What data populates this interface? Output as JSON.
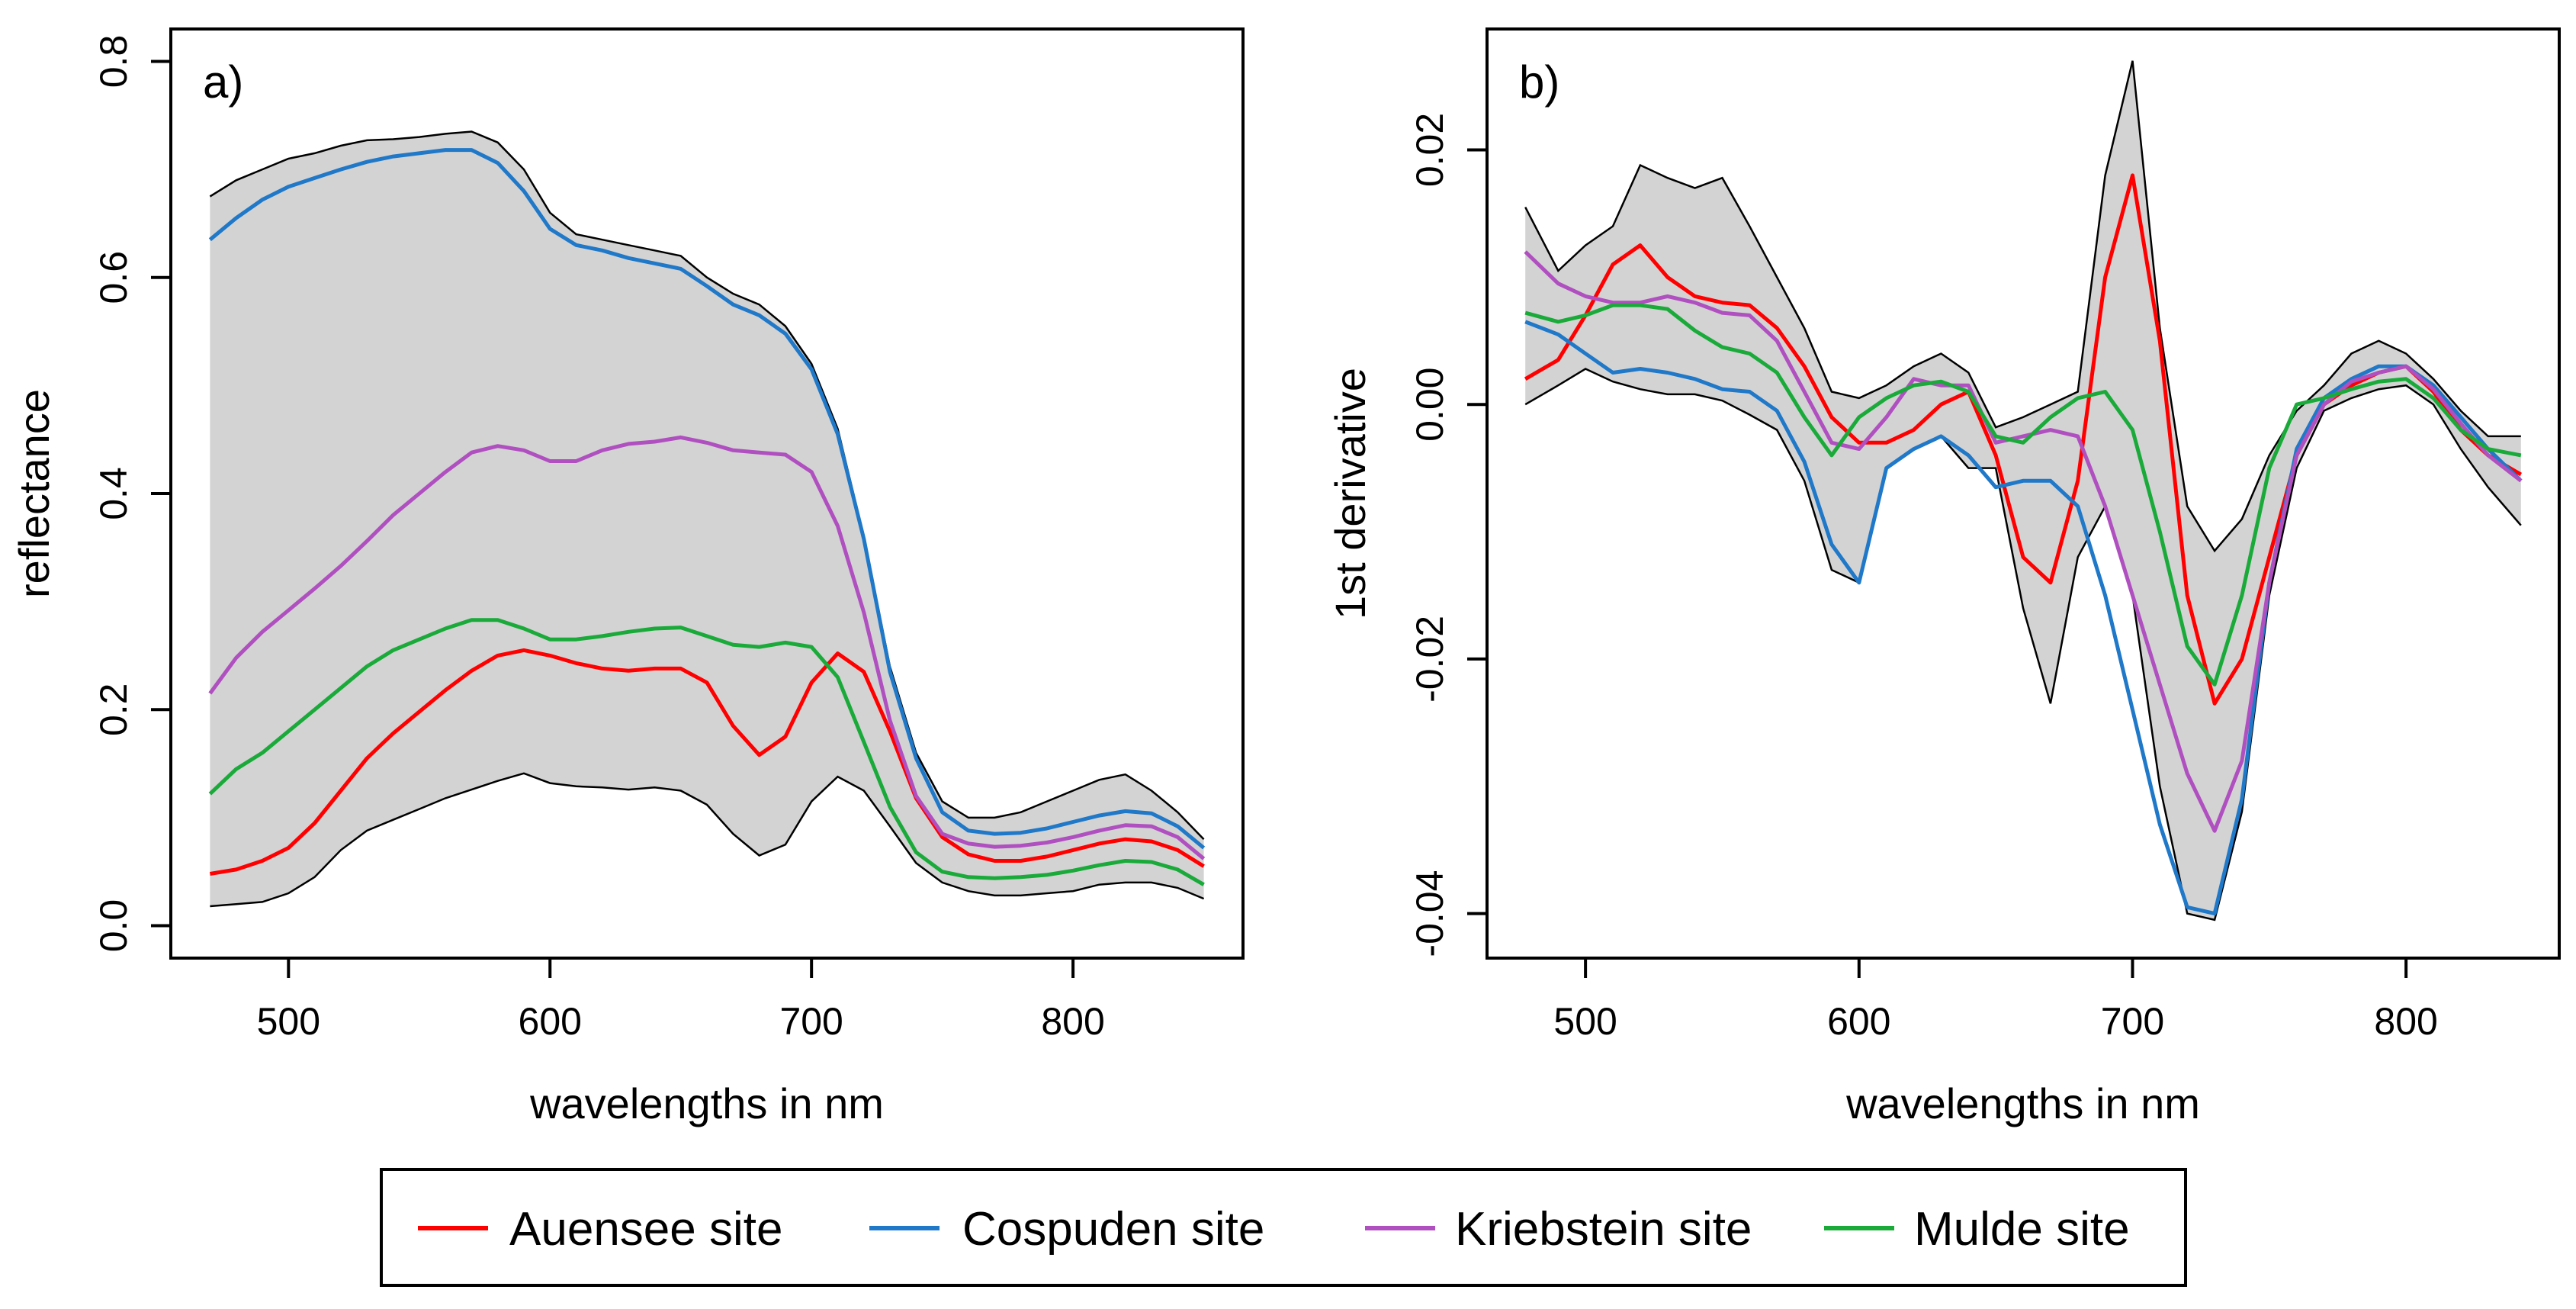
{
  "chart_data": [
    {
      "type": "line",
      "panel_label": "a)",
      "xlabel": "wavelengths in nm",
      "ylabel": "reflectance",
      "xlim": [
        455,
        865
      ],
      "ylim": [
        -0.03,
        0.83
      ],
      "xticks": [
        500,
        600,
        700,
        800
      ],
      "xtick_labels": [
        "500",
        "600",
        "700",
        "800"
      ],
      "yticks": [
        0.0,
        0.2,
        0.4,
        0.6,
        0.8
      ],
      "ytick_labels": [
        "0.0",
        "0.2",
        "0.4",
        "0.6",
        "0.8"
      ],
      "band": {
        "name": "min-max range",
        "color": "#d3d3d3",
        "x": [
          470,
          480,
          490,
          500,
          510,
          520,
          530,
          540,
          550,
          560,
          570,
          580,
          590,
          600,
          610,
          620,
          630,
          640,
          650,
          660,
          670,
          680,
          690,
          700,
          710,
          720,
          730,
          740,
          750,
          760,
          770,
          780,
          790,
          800,
          810,
          820,
          830,
          840,
          850
        ],
        "upper": [
          0.675,
          0.69,
          0.7,
          0.71,
          0.715,
          0.722,
          0.727,
          0.728,
          0.73,
          0.733,
          0.735,
          0.725,
          0.7,
          0.66,
          0.64,
          0.635,
          0.63,
          0.625,
          0.62,
          0.6,
          0.585,
          0.575,
          0.555,
          0.52,
          0.46,
          0.36,
          0.24,
          0.16,
          0.115,
          0.1,
          0.1,
          0.105,
          0.115,
          0.125,
          0.135,
          0.14,
          0.125,
          0.105,
          0.08
        ],
        "lower": [
          0.018,
          0.02,
          0.022,
          0.03,
          0.045,
          0.07,
          0.088,
          0.098,
          0.108,
          0.118,
          0.126,
          0.134,
          0.141,
          0.132,
          0.129,
          0.128,
          0.126,
          0.128,
          0.125,
          0.112,
          0.085,
          0.065,
          0.075,
          0.115,
          0.138,
          0.125,
          0.092,
          0.058,
          0.04,
          0.032,
          0.028,
          0.028,
          0.03,
          0.032,
          0.038,
          0.04,
          0.04,
          0.035,
          0.025
        ]
      },
      "series": [
        {
          "name": "Auensee site",
          "color": "#ff0000",
          "x": [
            470,
            480,
            490,
            500,
            510,
            520,
            530,
            540,
            550,
            560,
            570,
            580,
            590,
            600,
            610,
            620,
            630,
            640,
            650,
            660,
            670,
            680,
            690,
            700,
            710,
            720,
            730,
            740,
            750,
            760,
            770,
            780,
            790,
            800,
            810,
            820,
            830,
            840,
            850
          ],
          "y": [
            0.048,
            0.052,
            0.06,
            0.072,
            0.095,
            0.125,
            0.155,
            0.178,
            0.198,
            0.218,
            0.236,
            0.25,
            0.255,
            0.25,
            0.243,
            0.238,
            0.236,
            0.238,
            0.238,
            0.225,
            0.185,
            0.158,
            0.175,
            0.225,
            0.252,
            0.235,
            0.18,
            0.118,
            0.082,
            0.066,
            0.06,
            0.06,
            0.064,
            0.07,
            0.076,
            0.08,
            0.078,
            0.07,
            0.055
          ]
        },
        {
          "name": "Cospuden site",
          "color": "#1f78c8",
          "x": [
            470,
            480,
            490,
            500,
            510,
            520,
            530,
            540,
            550,
            560,
            570,
            580,
            590,
            600,
            610,
            620,
            630,
            640,
            650,
            660,
            670,
            680,
            690,
            700,
            710,
            720,
            730,
            740,
            750,
            760,
            770,
            780,
            790,
            800,
            810,
            820,
            830,
            840,
            850
          ],
          "y": [
            0.635,
            0.655,
            0.672,
            0.684,
            0.692,
            0.7,
            0.707,
            0.712,
            0.715,
            0.718,
            0.718,
            0.706,
            0.68,
            0.645,
            0.63,
            0.625,
            0.618,
            0.613,
            0.608,
            0.592,
            0.575,
            0.565,
            0.548,
            0.515,
            0.455,
            0.358,
            0.235,
            0.155,
            0.105,
            0.088,
            0.085,
            0.086,
            0.09,
            0.096,
            0.102,
            0.106,
            0.104,
            0.092,
            0.072
          ]
        },
        {
          "name": "Kriebstein site",
          "color": "#b04fc0",
          "x": [
            470,
            480,
            490,
            500,
            510,
            520,
            530,
            540,
            550,
            560,
            570,
            580,
            590,
            600,
            610,
            620,
            630,
            640,
            650,
            660,
            670,
            680,
            690,
            700,
            710,
            720,
            730,
            740,
            750,
            760,
            770,
            780,
            790,
            800,
            810,
            820,
            830,
            840,
            850
          ],
          "y": [
            0.215,
            0.248,
            0.272,
            0.292,
            0.312,
            0.333,
            0.356,
            0.38,
            0.4,
            0.42,
            0.438,
            0.444,
            0.44,
            0.43,
            0.43,
            0.44,
            0.446,
            0.448,
            0.452,
            0.447,
            0.44,
            0.438,
            0.436,
            0.42,
            0.37,
            0.29,
            0.19,
            0.12,
            0.085,
            0.076,
            0.073,
            0.074,
            0.077,
            0.082,
            0.088,
            0.093,
            0.092,
            0.082,
            0.062
          ]
        },
        {
          "name": "Mulde site",
          "color": "#1aaa3a",
          "x": [
            470,
            480,
            490,
            500,
            510,
            520,
            530,
            540,
            550,
            560,
            570,
            580,
            590,
            600,
            610,
            620,
            630,
            640,
            650,
            660,
            670,
            680,
            690,
            700,
            710,
            720,
            730,
            740,
            750,
            760,
            770,
            780,
            790,
            800,
            810,
            820,
            830,
            840,
            850
          ],
          "y": [
            0.122,
            0.145,
            0.16,
            0.18,
            0.2,
            0.22,
            0.24,
            0.255,
            0.265,
            0.275,
            0.283,
            0.283,
            0.275,
            0.265,
            0.265,
            0.268,
            0.272,
            0.275,
            0.276,
            0.268,
            0.26,
            0.258,
            0.262,
            0.258,
            0.23,
            0.17,
            0.11,
            0.068,
            0.05,
            0.045,
            0.044,
            0.045,
            0.047,
            0.051,
            0.056,
            0.06,
            0.059,
            0.052,
            0.038
          ]
        }
      ]
    },
    {
      "type": "line",
      "panel_label": "b)",
      "xlabel": "wavelengths in nm",
      "ylabel": "1st derivative",
      "xlim": [
        464,
        856
      ],
      "ylim": [
        -0.0435,
        0.0295
      ],
      "xticks": [
        500,
        600,
        700,
        800
      ],
      "xtick_labels": [
        "500",
        "600",
        "700",
        "800"
      ],
      "yticks": [
        -0.04,
        -0.02,
        0.0,
        0.02
      ],
      "ytick_labels": [
        "-0.04",
        "-0.02",
        "0.00",
        "0.02"
      ],
      "band": {
        "name": "min-max range",
        "color": "#d3d3d3",
        "x": [
          478,
          490,
          500,
          510,
          520,
          530,
          540,
          550,
          560,
          570,
          580,
          590,
          600,
          610,
          620,
          630,
          640,
          650,
          660,
          670,
          680,
          690,
          700,
          710,
          720,
          730,
          740,
          750,
          760,
          770,
          780,
          790,
          800,
          810,
          820,
          830,
          842
        ],
        "upper": [
          0.0155,
          0.0105,
          0.0125,
          0.014,
          0.0188,
          0.0178,
          0.017,
          0.0178,
          0.014,
          0.01,
          0.006,
          0.001,
          0.0005,
          0.0015,
          0.003,
          0.004,
          0.0025,
          -0.0018,
          -0.001,
          0.0,
          0.001,
          0.018,
          0.027,
          0.006,
          -0.008,
          -0.0115,
          -0.009,
          -0.004,
          -0.0005,
          0.0015,
          0.004,
          0.005,
          0.004,
          0.002,
          -0.0005,
          -0.0025,
          -0.0025
        ],
        "lower": [
          0.0,
          0.0015,
          0.0028,
          0.0018,
          0.0012,
          0.0008,
          0.0008,
          0.0003,
          -0.0008,
          -0.002,
          -0.006,
          -0.013,
          -0.014,
          -0.005,
          -0.0035,
          -0.0025,
          -0.005,
          -0.005,
          -0.016,
          -0.0235,
          -0.012,
          -0.008,
          -0.015,
          -0.03,
          -0.04,
          -0.0405,
          -0.032,
          -0.015,
          -0.005,
          -0.0005,
          0.0005,
          0.0012,
          0.0015,
          0.0,
          -0.0035,
          -0.0065,
          -0.0095
        ]
      },
      "series": [
        {
          "name": "Auensee site",
          "color": "#ff0000",
          "x": [
            478,
            490,
            500,
            510,
            520,
            530,
            540,
            550,
            560,
            570,
            580,
            590,
            600,
            610,
            620,
            630,
            640,
            650,
            660,
            670,
            680,
            690,
            700,
            710,
            720,
            730,
            740,
            750,
            760,
            770,
            780,
            790,
            800,
            810,
            820,
            830,
            842
          ],
          "y": [
            0.002,
            0.0035,
            0.007,
            0.011,
            0.0125,
            0.01,
            0.0085,
            0.008,
            0.0078,
            0.006,
            0.003,
            -0.001,
            -0.003,
            -0.003,
            -0.002,
            0.0,
            0.001,
            -0.004,
            -0.012,
            -0.014,
            -0.006,
            0.01,
            0.018,
            0.005,
            -0.015,
            -0.0235,
            -0.02,
            -0.012,
            -0.004,
            0.0,
            0.0015,
            0.0025,
            0.003,
            0.001,
            -0.002,
            -0.004,
            -0.0055
          ]
        },
        {
          "name": "Cospuden site",
          "color": "#1f78c8",
          "x": [
            478,
            490,
            500,
            510,
            520,
            530,
            540,
            550,
            560,
            570,
            580,
            590,
            600,
            610,
            620,
            630,
            640,
            650,
            660,
            670,
            680,
            690,
            700,
            710,
            720,
            730,
            740,
            750,
            760,
            770,
            780,
            790,
            800,
            810,
            820,
            830,
            842
          ],
          "y": [
            0.0065,
            0.0055,
            0.004,
            0.0025,
            0.0028,
            0.0025,
            0.002,
            0.0012,
            0.001,
            -0.0005,
            -0.0045,
            -0.011,
            -0.014,
            -0.005,
            -0.0035,
            -0.0025,
            -0.004,
            -0.0065,
            -0.006,
            -0.006,
            -0.008,
            -0.015,
            -0.024,
            -0.033,
            -0.0395,
            -0.04,
            -0.031,
            -0.014,
            -0.0035,
            0.0005,
            0.002,
            0.003,
            0.003,
            0.0015,
            -0.001,
            -0.0035,
            -0.006
          ]
        },
        {
          "name": "Kriebstein site",
          "color": "#b04fc0",
          "x": [
            478,
            490,
            500,
            510,
            520,
            530,
            540,
            550,
            560,
            570,
            580,
            590,
            600,
            610,
            620,
            630,
            640,
            650,
            660,
            670,
            680,
            690,
            700,
            710,
            720,
            730,
            740,
            750,
            760,
            770,
            780,
            790,
            800,
            810,
            820,
            830,
            842
          ],
          "y": [
            0.012,
            0.0095,
            0.0085,
            0.008,
            0.008,
            0.0085,
            0.008,
            0.0072,
            0.007,
            0.005,
            0.001,
            -0.003,
            -0.0035,
            -0.001,
            0.002,
            0.0015,
            0.0015,
            -0.003,
            -0.0025,
            -0.002,
            -0.0025,
            -0.008,
            -0.015,
            -0.022,
            -0.029,
            -0.0335,
            -0.028,
            -0.014,
            -0.004,
            0.0,
            0.0018,
            0.0025,
            0.003,
            0.0012,
            -0.0015,
            -0.004,
            -0.006
          ]
        },
        {
          "name": "Mulde site",
          "color": "#1aaa3a",
          "x": [
            478,
            490,
            500,
            510,
            520,
            530,
            540,
            550,
            560,
            570,
            580,
            590,
            600,
            610,
            620,
            630,
            640,
            650,
            660,
            670,
            680,
            690,
            700,
            710,
            720,
            730,
            740,
            750,
            760,
            770,
            780,
            790,
            800,
            810,
            820,
            830,
            842
          ],
          "y": [
            0.0072,
            0.0065,
            0.007,
            0.0078,
            0.0078,
            0.0075,
            0.0058,
            0.0045,
            0.004,
            0.0025,
            -0.001,
            -0.004,
            -0.001,
            0.0005,
            0.0015,
            0.0018,
            0.001,
            -0.0025,
            -0.003,
            -0.001,
            0.0005,
            0.001,
            -0.002,
            -0.01,
            -0.019,
            -0.022,
            -0.015,
            -0.005,
            0.0,
            0.0005,
            0.0012,
            0.0018,
            0.002,
            0.0005,
            -0.002,
            -0.0035,
            -0.004
          ]
        }
      ]
    }
  ],
  "legend": {
    "entries": [
      {
        "label": "Auensee site",
        "color": "#ff0000"
      },
      {
        "label": "Cospuden site",
        "color": "#1f78c8"
      },
      {
        "label": "Kriebstein site",
        "color": "#b04fc0"
      },
      {
        "label": "Mulde site",
        "color": "#1aaa3a"
      }
    ]
  }
}
